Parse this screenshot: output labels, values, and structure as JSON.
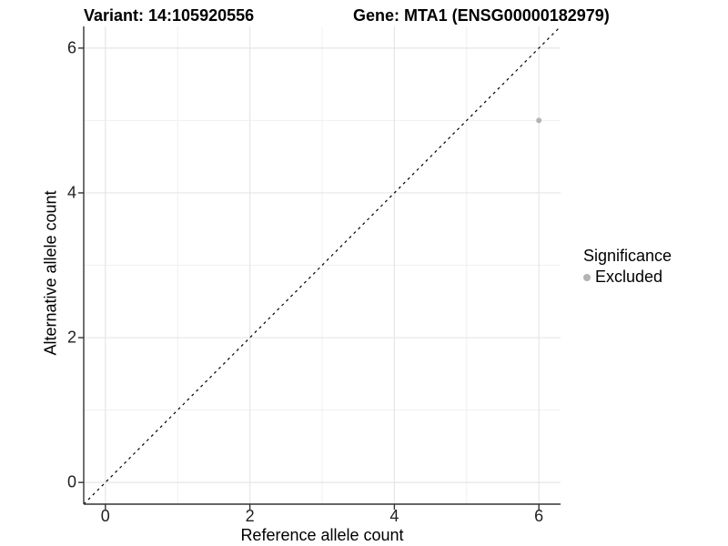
{
  "header": {
    "title_variant": "Variant: 14:105920556",
    "title_gene": "Gene: MTA1 (ENSG00000182979)"
  },
  "chart_data": {
    "type": "scatter",
    "title_variant": "Variant: 14:105920556",
    "title_gene": "Gene: MTA1 (ENSG00000182979)",
    "xlabel": "Reference allele count",
    "ylabel": "Alternative allele count",
    "xlim": [
      -0.3,
      6.3
    ],
    "ylim": [
      -0.3,
      6.3
    ],
    "xticks": [
      0,
      2,
      4,
      6
    ],
    "yticks": [
      0,
      2,
      4,
      6
    ],
    "minor_gridlines_x": [
      1,
      3,
      5
    ],
    "minor_gridlines_y": [
      1,
      3,
      5
    ],
    "grid": true,
    "series": [
      {
        "name": "Excluded",
        "color": "#b3b3b3",
        "points": [
          {
            "x": 6,
            "y": 5
          }
        ]
      }
    ],
    "reference_line": {
      "style": "dashed",
      "color": "#000000",
      "from": [
        -0.3,
        -0.3
      ],
      "to": [
        6.3,
        6.3
      ]
    },
    "legend": {
      "title": "Significance",
      "position": "right",
      "items": [
        {
          "label": "Excluded",
          "color": "#b3b3b3"
        }
      ]
    },
    "colors": {
      "axis_line": "#333333",
      "major_grid": "#e6e6e6",
      "minor_grid": "#f0f0f0",
      "tick_text": "#1f1f1f",
      "point": "#b3b3b3"
    }
  }
}
